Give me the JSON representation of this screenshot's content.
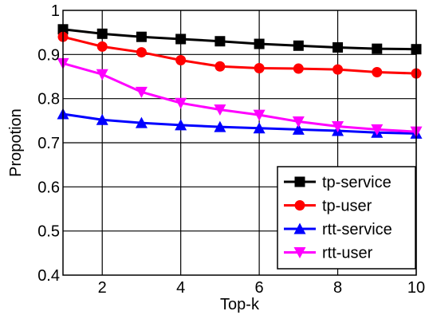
{
  "chart_data": {
    "type": "line",
    "title": "",
    "xlabel": "Top-k",
    "ylabel": "Propotion",
    "x": [
      1,
      2,
      3,
      4,
      5,
      6,
      7,
      8,
      9,
      10
    ],
    "xlim": [
      1,
      10
    ],
    "ylim": [
      0.4,
      1
    ],
    "xticks": [
      2,
      4,
      6,
      8,
      10
    ],
    "yticks": [
      0.4,
      0.5,
      0.6,
      0.7,
      0.8,
      0.9,
      1
    ],
    "xtick_labels": [
      "2",
      "4",
      "6",
      "8",
      "10"
    ],
    "ytick_labels": [
      "0.4",
      "0.5",
      "0.6",
      "0.7",
      "0.8",
      "0.9",
      "1"
    ],
    "grid": true,
    "legend_position": "bottom-right",
    "series": [
      {
        "name": "tp-service",
        "color": "#000000",
        "marker": "square",
        "values": [
          0.957,
          0.947,
          0.94,
          0.935,
          0.93,
          0.924,
          0.92,
          0.916,
          0.913,
          0.912
        ]
      },
      {
        "name": "tp-user",
        "color": "#ff0000",
        "marker": "circle",
        "values": [
          0.94,
          0.918,
          0.905,
          0.887,
          0.873,
          0.869,
          0.868,
          0.866,
          0.86,
          0.857
        ]
      },
      {
        "name": "rtt-service",
        "color": "#0000ff",
        "marker": "triangle-up",
        "values": [
          0.765,
          0.752,
          0.745,
          0.74,
          0.736,
          0.733,
          0.73,
          0.727,
          0.723,
          0.721
        ]
      },
      {
        "name": "rtt-user",
        "color": "#ff00ff",
        "marker": "triangle-down",
        "values": [
          0.88,
          0.855,
          0.815,
          0.79,
          0.775,
          0.763,
          0.748,
          0.737,
          0.73,
          0.725
        ]
      }
    ]
  }
}
